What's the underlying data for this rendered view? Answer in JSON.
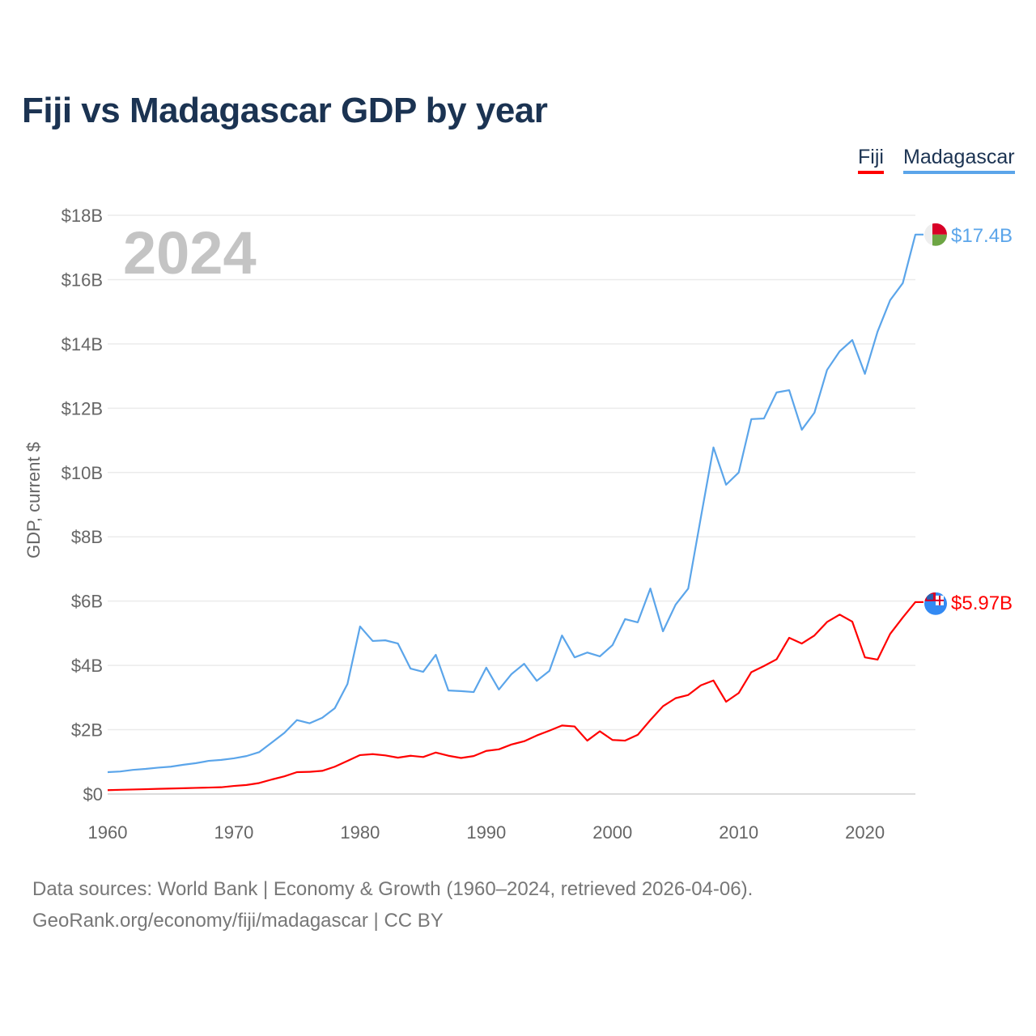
{
  "header": {
    "title": "Fiji vs Madagascar GDP by year"
  },
  "footer": {
    "line1": "Data sources: World Bank | Economy & Growth (1960–2024, retrieved 2026-04-06).",
    "line2": "GeoRank.org/economy/fiji/madagascar | CC BY"
  },
  "chart_data": {
    "type": "line",
    "title": "Fiji vs Madagascar GDP by year",
    "xlabel": "",
    "ylabel": "GDP, current $",
    "year_watermark": "2024",
    "xlim": [
      1960,
      2024
    ],
    "ylim": [
      0,
      18
    ],
    "grid": true,
    "legend_position": "top-right",
    "x_ticks": [
      1960,
      1970,
      1980,
      1990,
      2000,
      2010,
      2020
    ],
    "x_tick_labels": [
      "1960",
      "1970",
      "1980",
      "1990",
      "2000",
      "2010",
      "2020"
    ],
    "y_ticks": [
      0,
      2,
      4,
      6,
      8,
      10,
      12,
      14,
      16,
      18
    ],
    "y_tick_labels": [
      "$0",
      "$2B",
      "$4B",
      "$6B",
      "$8B",
      "$10B",
      "$12B",
      "$14B",
      "$16B",
      "$18B"
    ],
    "x": [
      1960,
      1961,
      1962,
      1963,
      1964,
      1965,
      1966,
      1967,
      1968,
      1969,
      1970,
      1971,
      1972,
      1973,
      1974,
      1975,
      1976,
      1977,
      1978,
      1979,
      1980,
      1981,
      1982,
      1983,
      1984,
      1985,
      1986,
      1987,
      1988,
      1989,
      1990,
      1991,
      1992,
      1993,
      1994,
      1995,
      1996,
      1997,
      1998,
      1999,
      2000,
      2001,
      2002,
      2003,
      2004,
      2005,
      2006,
      2007,
      2008,
      2009,
      2010,
      2011,
      2012,
      2013,
      2014,
      2015,
      2016,
      2017,
      2018,
      2019,
      2020,
      2021,
      2022,
      2023,
      2024
    ],
    "series": [
      {
        "name": "Fiji",
        "color": "#ff0000",
        "end_label": "$5.97B",
        "flag": "fiji-flag",
        "values": [
          0.12,
          0.13,
          0.14,
          0.15,
          0.16,
          0.17,
          0.18,
          0.19,
          0.2,
          0.21,
          0.25,
          0.28,
          0.34,
          0.45,
          0.55,
          0.68,
          0.69,
          0.72,
          0.85,
          1.03,
          1.21,
          1.24,
          1.2,
          1.13,
          1.19,
          1.15,
          1.29,
          1.19,
          1.12,
          1.18,
          1.34,
          1.39,
          1.54,
          1.64,
          1.82,
          1.97,
          2.13,
          2.1,
          1.66,
          1.95,
          1.68,
          1.66,
          1.84,
          2.3,
          2.73,
          2.98,
          3.08,
          3.38,
          3.53,
          2.87,
          3.14,
          3.79,
          3.98,
          4.19,
          4.86,
          4.68,
          4.93,
          5.35,
          5.58,
          5.36,
          4.25,
          4.18,
          4.98,
          5.49,
          5.97
        ]
      },
      {
        "name": "Madagascar",
        "color": "#5ba5ea",
        "end_label": "$17.4B",
        "flag": "madagascar-flag",
        "values": [
          0.68,
          0.7,
          0.75,
          0.78,
          0.82,
          0.85,
          0.91,
          0.96,
          1.03,
          1.06,
          1.11,
          1.18,
          1.3,
          1.6,
          1.9,
          2.3,
          2.2,
          2.37,
          2.67,
          3.42,
          5.21,
          4.76,
          4.78,
          4.68,
          3.9,
          3.8,
          4.33,
          3.22,
          3.2,
          3.17,
          3.93,
          3.25,
          3.73,
          4.05,
          3.52,
          3.83,
          4.93,
          4.25,
          4.4,
          4.28,
          4.63,
          5.44,
          5.34,
          6.39,
          5.06,
          5.89,
          6.39,
          8.6,
          10.78,
          9.62,
          10.0,
          11.66,
          11.68,
          12.49,
          12.56,
          11.33,
          11.86,
          13.19,
          13.77,
          14.12,
          13.07,
          14.38,
          15.36,
          15.89,
          17.4
        ]
      }
    ]
  }
}
